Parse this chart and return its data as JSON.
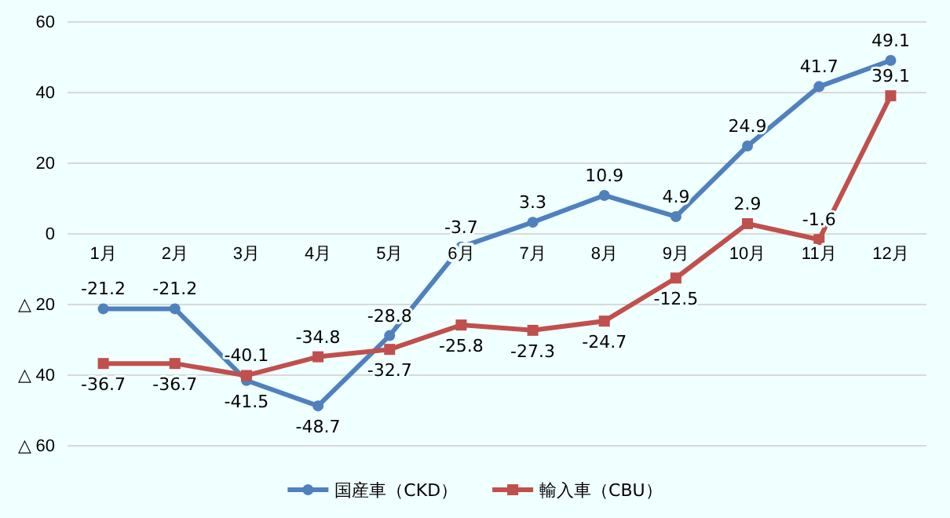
{
  "chart_data": {
    "type": "line",
    "categories": [
      "1月",
      "2月",
      "3月",
      "4月",
      "5月",
      "6月",
      "7月",
      "8月",
      "9月",
      "10月",
      "11月",
      "12月"
    ],
    "series": [
      {
        "name": "国産車（CKD）",
        "color": "#4f81bd",
        "marker": "circle",
        "values": [
          -21.2,
          -21.2,
          -41.5,
          -48.7,
          -28.8,
          -3.7,
          3.3,
          10.9,
          4.9,
          24.9,
          41.7,
          49.1
        ]
      },
      {
        "name": "輸入車（CBU）",
        "color": "#c0504d",
        "marker": "square",
        "values": [
          -36.7,
          -36.7,
          -40.1,
          -34.8,
          -32.7,
          -25.8,
          -27.3,
          -24.7,
          -12.5,
          2.9,
          -1.6,
          39.1
        ]
      }
    ],
    "ylim": [
      -60,
      60
    ],
    "yticks": [
      {
        "value": -60,
        "label": "△ 60"
      },
      {
        "value": -40,
        "label": "△ 40"
      },
      {
        "value": -20,
        "label": "△ 20"
      },
      0,
      20,
      40,
      60
    ],
    "grid": "y",
    "legend": "bottom",
    "data_labels": true
  }
}
